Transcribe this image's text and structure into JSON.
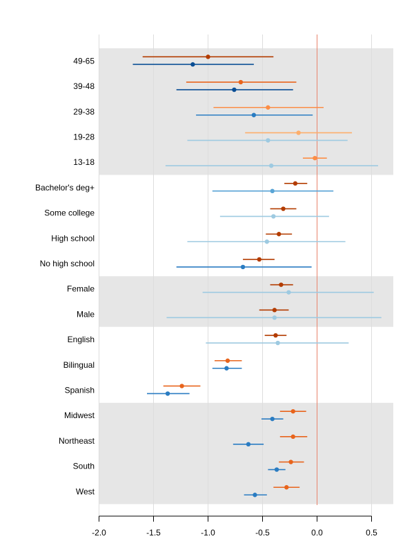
{
  "chart_data": {
    "type": "dot-interval",
    "title": "",
    "xlabel": "",
    "ylabel": "",
    "xlim": [
      -2.0,
      0.7
    ],
    "x_ticks": [
      "-2.0",
      "-1.5",
      "-1.0",
      "-0.5",
      "0.0",
      "0.5"
    ],
    "x_tick_values": [
      -2.0,
      -1.5,
      -1.0,
      -0.5,
      0.0,
      0.5
    ],
    "reference_line": 0.0,
    "vertical_grid": true,
    "colors": {
      "dark_orange": "#b33c00",
      "mid_orange": "#e8641c",
      "light_orange": "#fc8d45",
      "pale_orange": "#fdae6b",
      "dark_blue": "#084d94",
      "mid_blue": "#2a7cc2",
      "light_blue": "#5aa5d6",
      "pale_blue": "#9ecae1",
      "band": "#e6e6e6",
      "reference": "#e8826b",
      "grid": "#dddddd"
    },
    "groups": [
      {
        "shaded": true,
        "rows": [
          {
            "label": "49-65",
            "orange": {
              "est": -1.0,
              "lo": -1.6,
              "hi": -0.4,
              "color": "dark_orange"
            },
            "blue": {
              "est": -1.14,
              "lo": -1.69,
              "hi": -0.58,
              "color": "dark_blue"
            }
          },
          {
            "label": "39-48",
            "orange": {
              "est": -0.7,
              "lo": -1.2,
              "hi": -0.19,
              "color": "mid_orange"
            },
            "blue": {
              "est": -0.76,
              "lo": -1.29,
              "hi": -0.22,
              "color": "dark_blue"
            }
          },
          {
            "label": "29-38",
            "orange": {
              "est": -0.45,
              "lo": -0.95,
              "hi": 0.06,
              "color": "light_orange"
            },
            "blue": {
              "est": -0.58,
              "lo": -1.11,
              "hi": -0.04,
              "color": "mid_blue"
            }
          },
          {
            "label": "19-28",
            "orange": {
              "est": -0.17,
              "lo": -0.66,
              "hi": 0.32,
              "color": "pale_orange"
            },
            "blue": {
              "est": -0.45,
              "lo": -1.19,
              "hi": 0.28,
              "color": "pale_blue"
            }
          },
          {
            "label": "13-18",
            "orange": {
              "est": -0.02,
              "lo": -0.13,
              "hi": 0.09,
              "color": "light_orange"
            },
            "blue": {
              "est": -0.42,
              "lo": -1.39,
              "hi": 0.56,
              "color": "pale_blue"
            }
          }
        ]
      },
      {
        "shaded": false,
        "rows": [
          {
            "label": "Bachelor's deg+",
            "orange": {
              "est": -0.2,
              "lo": -0.3,
              "hi": -0.09,
              "color": "dark_orange"
            },
            "blue": {
              "est": -0.41,
              "lo": -0.96,
              "hi": 0.15,
              "color": "light_blue"
            }
          },
          {
            "label": "Some college",
            "orange": {
              "est": -0.31,
              "lo": -0.43,
              "hi": -0.19,
              "color": "dark_orange"
            },
            "blue": {
              "est": -0.4,
              "lo": -0.89,
              "hi": 0.11,
              "color": "pale_blue"
            }
          },
          {
            "label": "High school",
            "orange": {
              "est": -0.35,
              "lo": -0.47,
              "hi": -0.23,
              "color": "dark_orange"
            },
            "blue": {
              "est": -0.46,
              "lo": -1.19,
              "hi": 0.26,
              "color": "pale_blue"
            }
          },
          {
            "label": "No high school",
            "orange": {
              "est": -0.53,
              "lo": -0.68,
              "hi": -0.39,
              "color": "dark_orange"
            },
            "blue": {
              "est": -0.68,
              "lo": -1.29,
              "hi": -0.05,
              "color": "mid_blue"
            }
          }
        ]
      },
      {
        "shaded": true,
        "rows": [
          {
            "label": "Female",
            "orange": {
              "est": -0.33,
              "lo": -0.43,
              "hi": -0.22,
              "color": "dark_orange"
            },
            "blue": {
              "est": -0.26,
              "lo": -1.05,
              "hi": 0.52,
              "color": "pale_blue"
            }
          },
          {
            "label": "Male",
            "orange": {
              "est": -0.39,
              "lo": -0.53,
              "hi": -0.26,
              "color": "dark_orange"
            },
            "blue": {
              "est": -0.39,
              "lo": -1.38,
              "hi": 0.59,
              "color": "pale_blue"
            }
          }
        ]
      },
      {
        "shaded": false,
        "rows": [
          {
            "label": "English",
            "orange": {
              "est": -0.38,
              "lo": -0.48,
              "hi": -0.28,
              "color": "dark_orange"
            },
            "blue": {
              "est": -0.36,
              "lo": -1.02,
              "hi": 0.29,
              "color": "pale_blue"
            }
          },
          {
            "label": "Bilingual",
            "orange": {
              "est": -0.82,
              "lo": -0.94,
              "hi": -0.69,
              "color": "mid_orange"
            },
            "blue": {
              "est": -0.83,
              "lo": -0.96,
              "hi": -0.69,
              "color": "mid_blue"
            }
          },
          {
            "label": "Spanish",
            "orange": {
              "est": -1.24,
              "lo": -1.41,
              "hi": -1.07,
              "color": "mid_orange"
            },
            "blue": {
              "est": -1.37,
              "lo": -1.56,
              "hi": -1.17,
              "color": "mid_blue"
            }
          }
        ]
      },
      {
        "shaded": true,
        "rows": [
          {
            "label": "Midwest",
            "orange": {
              "est": -0.22,
              "lo": -0.34,
              "hi": -0.1,
              "color": "mid_orange"
            },
            "blue": {
              "est": -0.41,
              "lo": -0.51,
              "hi": -0.31,
              "color": "mid_blue"
            }
          },
          {
            "label": "Northeast",
            "orange": {
              "est": -0.22,
              "lo": -0.34,
              "hi": -0.09,
              "color": "mid_orange"
            },
            "blue": {
              "est": -0.63,
              "lo": -0.77,
              "hi": -0.49,
              "color": "mid_blue"
            }
          },
          {
            "label": "South",
            "orange": {
              "est": -0.24,
              "lo": -0.35,
              "hi": -0.12,
              "color": "mid_orange"
            },
            "blue": {
              "est": -0.37,
              "lo": -0.45,
              "hi": -0.29,
              "color": "mid_blue"
            }
          },
          {
            "label": "West",
            "orange": {
              "est": -0.28,
              "lo": -0.4,
              "hi": -0.16,
              "color": "mid_orange"
            },
            "blue": {
              "est": -0.57,
              "lo": -0.67,
              "hi": -0.46,
              "color": "mid_blue"
            }
          }
        ]
      }
    ]
  }
}
